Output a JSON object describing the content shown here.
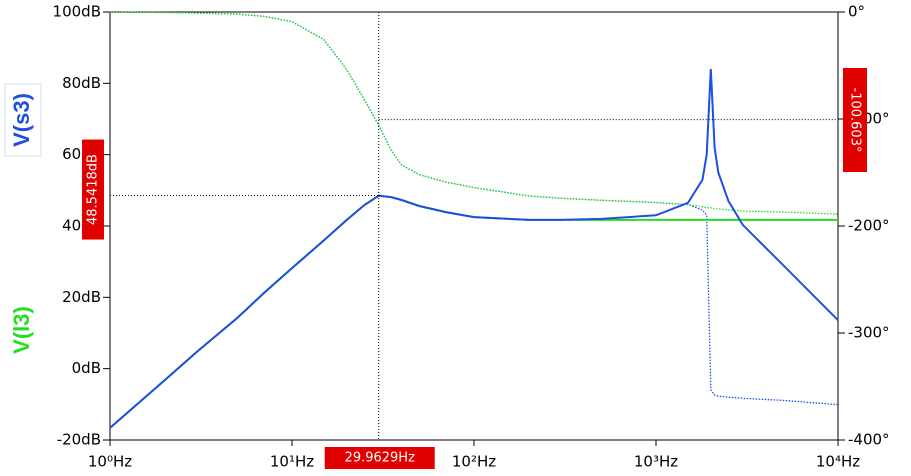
{
  "chart_data": {
    "type": "line",
    "xscale": "log",
    "x": [
      1,
      2,
      3,
      5,
      7,
      10,
      15,
      20,
      25,
      30,
      35,
      40,
      50,
      70,
      100,
      200,
      300,
      500,
      1000,
      1500,
      1800,
      1900,
      2000,
      2100,
      2200,
      2500,
      3000,
      5000,
      10000
    ],
    "xlim": [
      1,
      10000
    ],
    "xticks": [
      {
        "value": 1,
        "label": "10⁰Hz"
      },
      {
        "value": 10,
        "label": "10¹Hz"
      },
      {
        "value": 100,
        "label": "10²Hz"
      },
      {
        "value": 1000,
        "label": "10³Hz"
      },
      {
        "value": 10000,
        "label": "10⁴Hz"
      }
    ],
    "ylim": [
      -20,
      100
    ],
    "yticks": [
      {
        "value": -20,
        "label": "-20dB"
      },
      {
        "value": 0,
        "label": "0dB"
      },
      {
        "value": 20,
        "label": "20dB"
      },
      {
        "value": 40,
        "label": "40dB"
      },
      {
        "value": 60,
        "label": "60dB"
      },
      {
        "value": 80,
        "label": "80dB"
      },
      {
        "value": 100,
        "label": "100dB"
      }
    ],
    "y2lim": [
      -400,
      0
    ],
    "y2ticks": [
      {
        "value": -400,
        "label": "-400°"
      },
      {
        "value": -300,
        "label": "-300°"
      },
      {
        "value": -200,
        "label": "-200°"
      },
      {
        "value": -100,
        "label": "-100°"
      },
      {
        "value": 0,
        "label": "0°"
      }
    ],
    "series": [
      {
        "name": "V(s3)",
        "color": "#1f4fe0",
        "values": [
          -16.6,
          -3.2,
          4.7,
          14.2,
          21.2,
          28.2,
          36,
          41.7,
          45.9,
          48.5,
          48.1,
          47.3,
          45.6,
          43.9,
          42.5,
          41.7,
          41.7,
          42,
          43,
          46.5,
          53,
          60,
          84,
          62,
          55,
          47,
          40.3,
          29,
          13.6
        ],
        "phase": [
          0,
          -0.5,
          -1,
          -2,
          -4,
          -9,
          -26,
          -54,
          -82,
          -106,
          -129,
          -143,
          -152,
          -159,
          -164,
          -172,
          -174,
          -176,
          -178,
          -180,
          -185,
          -190,
          -353,
          -358,
          -359,
          -360,
          -361,
          -363,
          -367
        ]
      },
      {
        "name": "V(l3)",
        "color": "#22dd22",
        "values": [
          -16.6,
          -3.2,
          4.7,
          14.2,
          21.2,
          28.2,
          36,
          41.7,
          45.9,
          48.5,
          48.1,
          47.3,
          45.6,
          43.9,
          42.5,
          41.7,
          41.7,
          41.7,
          41.7,
          41.7,
          41.7,
          41.7,
          41.7,
          41.7,
          41.7,
          41.7,
          41.7,
          41.7,
          41.7
        ],
        "phase": [
          0,
          -0.5,
          -1,
          -2,
          -4,
          -9,
          -26,
          -54,
          -82,
          -106,
          -129,
          -143,
          -152,
          -159,
          -164,
          -172,
          -174,
          -176,
          -178,
          -180,
          -182,
          -183,
          -183,
          -184,
          -184,
          -185,
          -186,
          -187,
          -189
        ]
      }
    ],
    "cursor": {
      "x": {
        "value": 29.9629,
        "label": "29.9629Hz"
      },
      "y": {
        "value": 48.5418,
        "label": "48.5418dB"
      },
      "y2": {
        "value": -100.603,
        "label": "-100.603°"
      }
    }
  }
}
